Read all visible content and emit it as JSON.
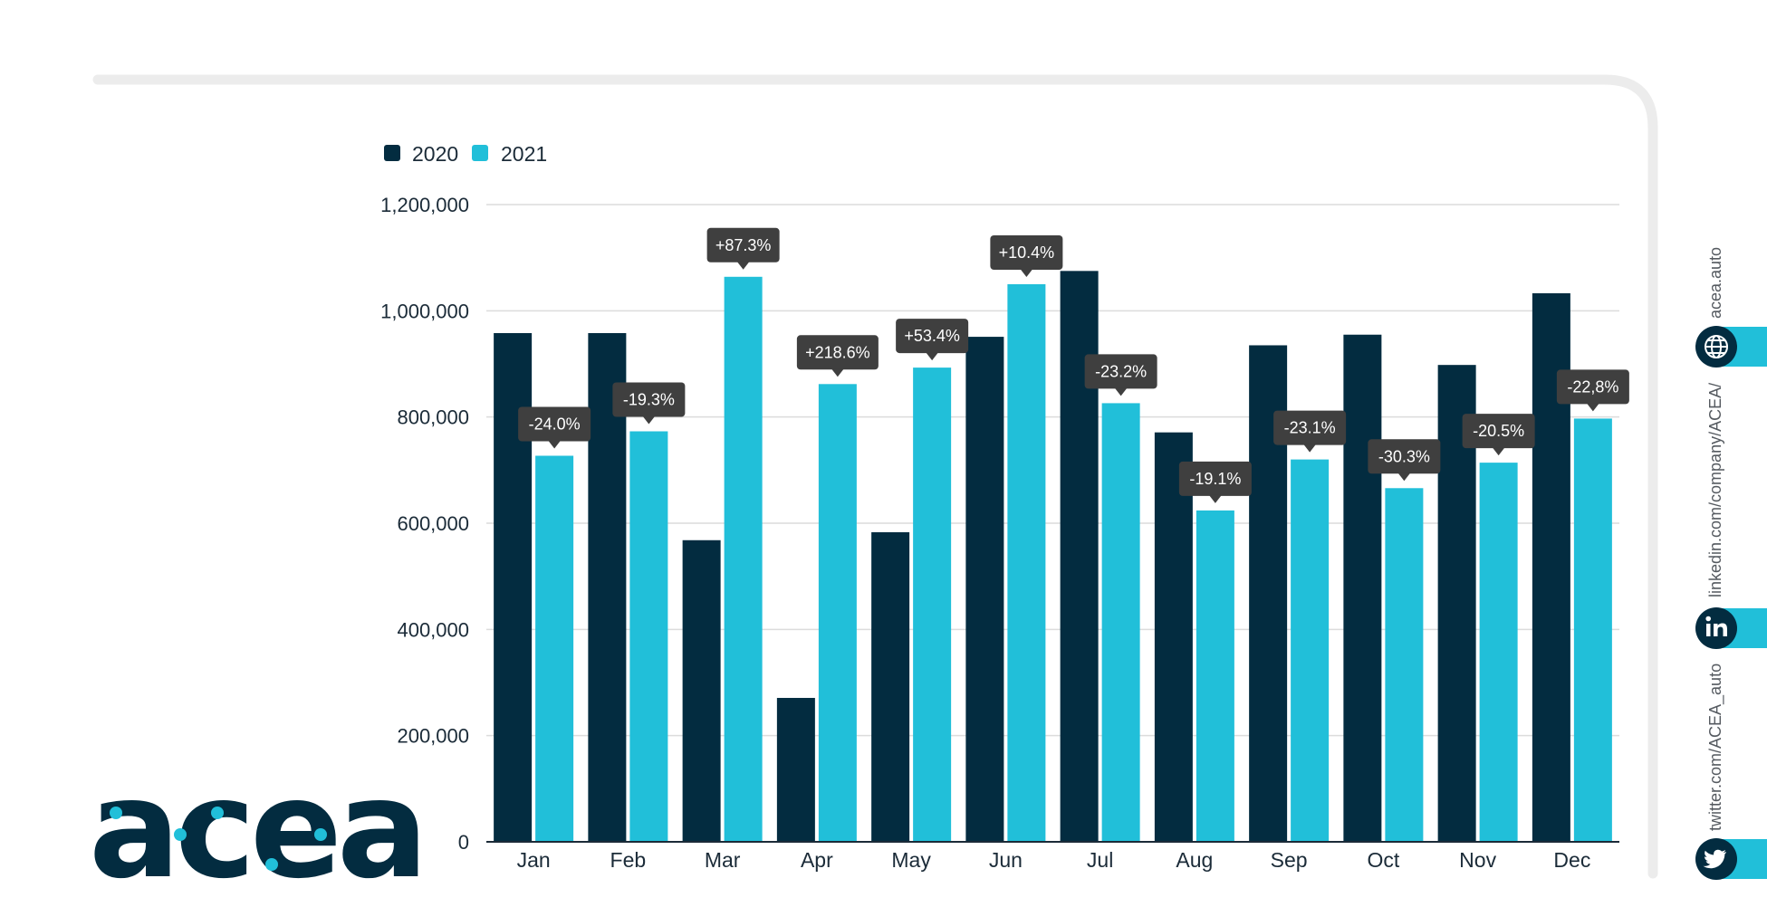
{
  "colors": {
    "series_2020": "#032c40",
    "series_2021": "#21bfd9",
    "callout": "#3f3f3f",
    "grid": "#dcdcdc",
    "frame": "#ececec",
    "social_circle": "#032c40",
    "social_tab": "#21bfd9"
  },
  "logo": {
    "text": "acea"
  },
  "social": {
    "website": {
      "icon": "globe-icon",
      "label": "acea.auto"
    },
    "linkedin": {
      "icon": "linkedin-icon",
      "label": "linkedin.com/company/ACEA/"
    },
    "twitter": {
      "icon": "twitter-icon",
      "label": "twitter.com/ACEA_auto"
    }
  },
  "chart_data": {
    "type": "bar",
    "title": "",
    "xlabel": "",
    "ylabel": "",
    "ylim": [
      0,
      1200000
    ],
    "yticks": [
      0,
      200000,
      400000,
      600000,
      800000,
      1000000,
      1200000
    ],
    "ytick_labels": [
      "0",
      "200,000",
      "400,000",
      "600,000",
      "800,000",
      "1,000,000",
      "1,200,000"
    ],
    "grid": true,
    "legend_position": "top-left",
    "categories": [
      "Jan",
      "Feb",
      "Mar",
      "Apr",
      "May",
      "Jun",
      "Jul",
      "Aug",
      "Sep",
      "Oct",
      "Nov",
      "Dec"
    ],
    "series": [
      {
        "name": "2020",
        "values": [
          958000,
          958000,
          568000,
          271000,
          583000,
          951000,
          1075000,
          771000,
          935000,
          955000,
          898000,
          1033000
        ]
      },
      {
        "name": "2021",
        "values": [
          727000,
          773000,
          1064000,
          862000,
          893000,
          1050000,
          826000,
          624000,
          720000,
          666000,
          714000,
          797000
        ]
      }
    ],
    "annotations": [
      "-24.0%",
      "-19.3%",
      "+87.3%",
      "+218.6%",
      "+53.4%",
      "+10.4%",
      "-23.2%",
      "-19.1%",
      "-23.1%",
      "-30.3%",
      "-20.5%",
      "-22,8%"
    ]
  }
}
